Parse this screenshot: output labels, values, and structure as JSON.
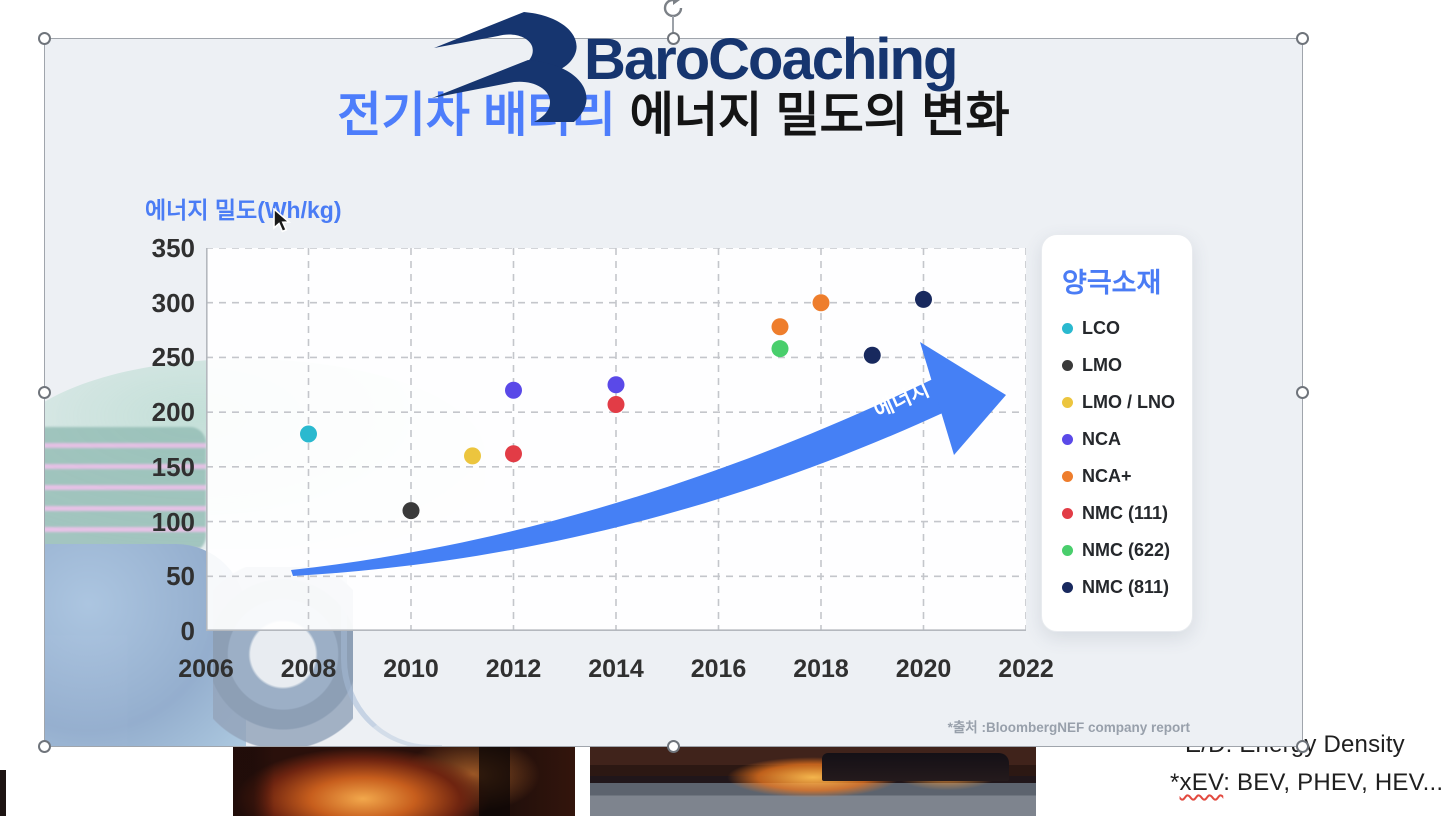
{
  "logo": {
    "text": "BaroCoaching"
  },
  "slide": {
    "title_part1": "전기차 배터리",
    "title_part2": "에너지 밀도의 변화",
    "source_note": "*출처 :BloombergNEF company report"
  },
  "chart_data": {
    "type": "scatter",
    "title": "전기차 배터리 에너지 밀도의 변화",
    "ylabel": "에너지 밀도(Wh/kg)",
    "xlabel": "",
    "xlim": [
      2006,
      2022
    ],
    "ylim": [
      0,
      350
    ],
    "xticks": [
      2006,
      2008,
      2010,
      2012,
      2014,
      2016,
      2018,
      2020,
      2022
    ],
    "yticks": [
      0,
      50,
      100,
      150,
      200,
      250,
      300,
      350
    ],
    "grid": "dashed",
    "legend_title": "양극소재",
    "legend_position": "right",
    "arrow_annotation": "에너지",
    "series": [
      {
        "name": "LCO",
        "color": "#2ab9cf",
        "points": [
          [
            2008,
            180
          ]
        ]
      },
      {
        "name": "LMO",
        "color": "#3a3a3a",
        "points": [
          [
            2010,
            110
          ]
        ]
      },
      {
        "name": "LMO / LNO",
        "color": "#ecc53e",
        "points": [
          [
            2011.2,
            160
          ]
        ]
      },
      {
        "name": "NCA",
        "color": "#5a49e8",
        "points": [
          [
            2012,
            220
          ],
          [
            2014,
            225
          ]
        ]
      },
      {
        "name": "NCA+",
        "color": "#ee7d2c",
        "points": [
          [
            2017.2,
            278
          ],
          [
            2018,
            300
          ]
        ]
      },
      {
        "name": "NMC (111)",
        "color": "#e23c46",
        "points": [
          [
            2012,
            162
          ],
          [
            2014,
            207
          ]
        ]
      },
      {
        "name": "NMC (622)",
        "color": "#49ce6c",
        "points": [
          [
            2017.2,
            258
          ]
        ]
      },
      {
        "name": "NMC (811)",
        "color": "#18295e",
        "points": [
          [
            2019,
            252
          ],
          [
            2020,
            303
          ]
        ]
      }
    ]
  },
  "footnotes": {
    "ed_note": "E/D: Energy Density",
    "xev_prefix": "*",
    "xev_term": "xEV",
    "xev_rest": ": BEV, PHEV, HEV..."
  }
}
